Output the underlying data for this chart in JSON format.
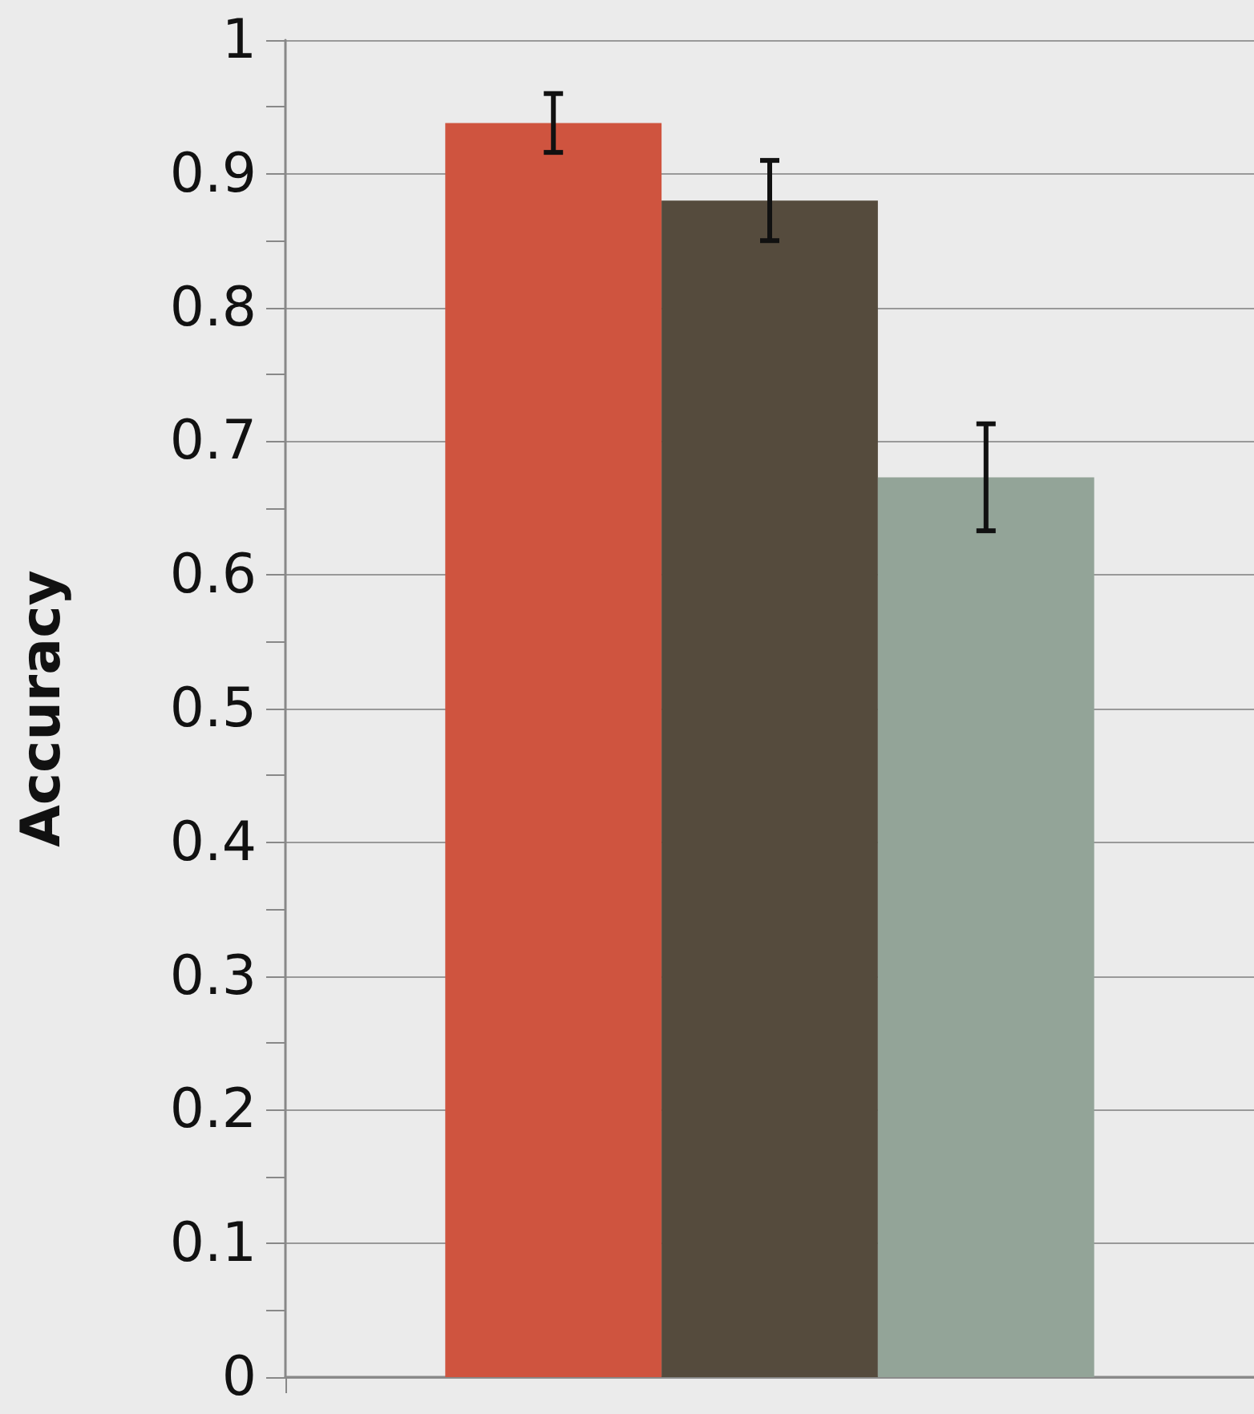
{
  "chart_data": {
    "type": "bar",
    "ylabel": "Accuracy",
    "categories": [
      null
    ],
    "series": [
      {
        "color": "#cf543f",
        "values": [
          0.938
        ],
        "errors": [
          0.022
        ]
      },
      {
        "color": "#554b3d",
        "values": [
          0.88
        ],
        "errors": [
          0.03
        ]
      },
      {
        "color": "#93a498",
        "values": [
          0.673
        ],
        "errors": [
          0.04
        ]
      }
    ],
    "ylim": [
      0,
      1
    ],
    "yticks": [
      0,
      {
        "value": 0.05,
        "label": null
      },
      0.1,
      {
        "value": 0.15,
        "label": null
      },
      0.2,
      {
        "value": 0.25,
        "label": null
      },
      0.3,
      {
        "value": 0.35,
        "label": null
      },
      0.4,
      {
        "value": 0.45,
        "label": null
      },
      0.5,
      {
        "value": 0.55,
        "label": null
      },
      0.6,
      {
        "value": 0.65,
        "label": null
      },
      0.7,
      {
        "value": 0.75,
        "label": null
      },
      0.8,
      {
        "value": 0.85,
        "label": null
      },
      0.9,
      {
        "value": 0.95,
        "label": null
      },
      1
    ],
    "grid": "y"
  }
}
